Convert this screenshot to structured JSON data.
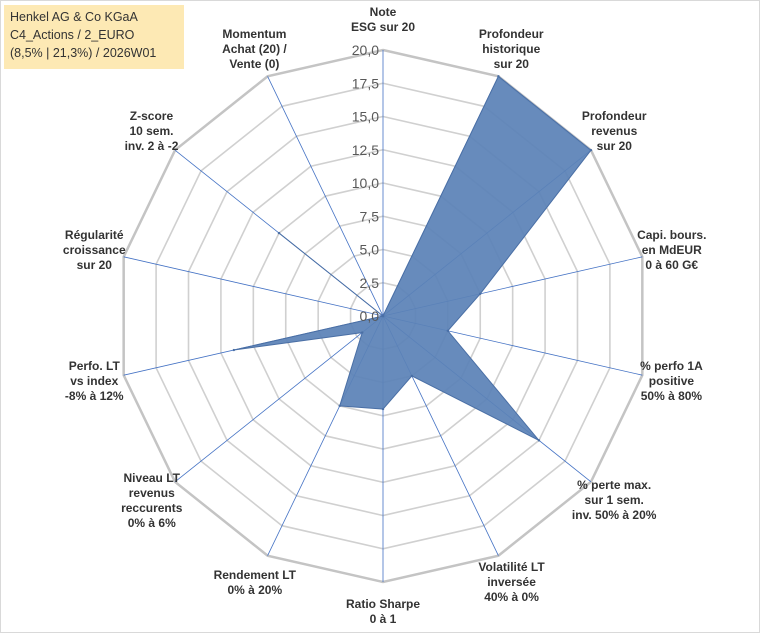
{
  "title": {
    "line1": "Henkel AG & Co KGaA",
    "line2": "C4_Actions / 2_EURO",
    "line3": "(8,5% | 21,3%) / 2026W01"
  },
  "colors": {
    "fill": "#5b82b7",
    "stroke": "#4a6fa5",
    "grid": "#d0d0d0",
    "spoke": "#4472c4",
    "title_bg": "#fde9b4"
  },
  "chart_data": {
    "type": "radar",
    "title": "Henkel AG & Co KGaA C4_Actions / 2_EURO (8,5% | 21,3%) / 2026W01",
    "rmin": 0,
    "rmax": 20,
    "rings": 8,
    "radial_ticks": [
      "0,0",
      "2,5",
      "5,0",
      "7,5",
      "10,0",
      "12,5",
      "15,0",
      "17,5",
      "20,0"
    ],
    "axes": [
      [
        "Note",
        "ESG sur 20"
      ],
      [
        "Profondeur",
        "historique",
        "sur 20"
      ],
      [
        "Profondeur",
        "revenus",
        "sur 20"
      ],
      [
        "Capi. bours.",
        "en MdEUR",
        "0 à 60 G€"
      ],
      [
        "% perfo 1A",
        "positive",
        "50% à 80%"
      ],
      [
        "% perte max.",
        "sur 1 sem.",
        "inv. 50% à 20%"
      ],
      [
        "Volatilité LT",
        "inversée",
        "40% à 0%"
      ],
      [
        "Ratio Sharpe",
        "0 à 1"
      ],
      [
        "Rendement LT",
        "0% à 20%"
      ],
      [
        "Niveau LT",
        "revenus",
        "reccurents",
        "0% à 6%"
      ],
      [
        "Perfo. LT",
        "vs index",
        "-8% à 12%"
      ],
      [
        "Régularité",
        "croissance",
        "sur 20"
      ],
      [
        "Z-score",
        "10 sem.",
        "inv. 2 à -2"
      ],
      [
        "Momentum",
        "Achat (20) /",
        "Vente (0)"
      ]
    ],
    "series": [
      {
        "name": "Henkel AG & Co KGaA",
        "values": [
          0,
          20,
          20,
          7.5,
          5,
          15,
          5,
          7,
          7.5,
          2,
          11.5,
          0,
          10,
          0
        ]
      }
    ]
  }
}
